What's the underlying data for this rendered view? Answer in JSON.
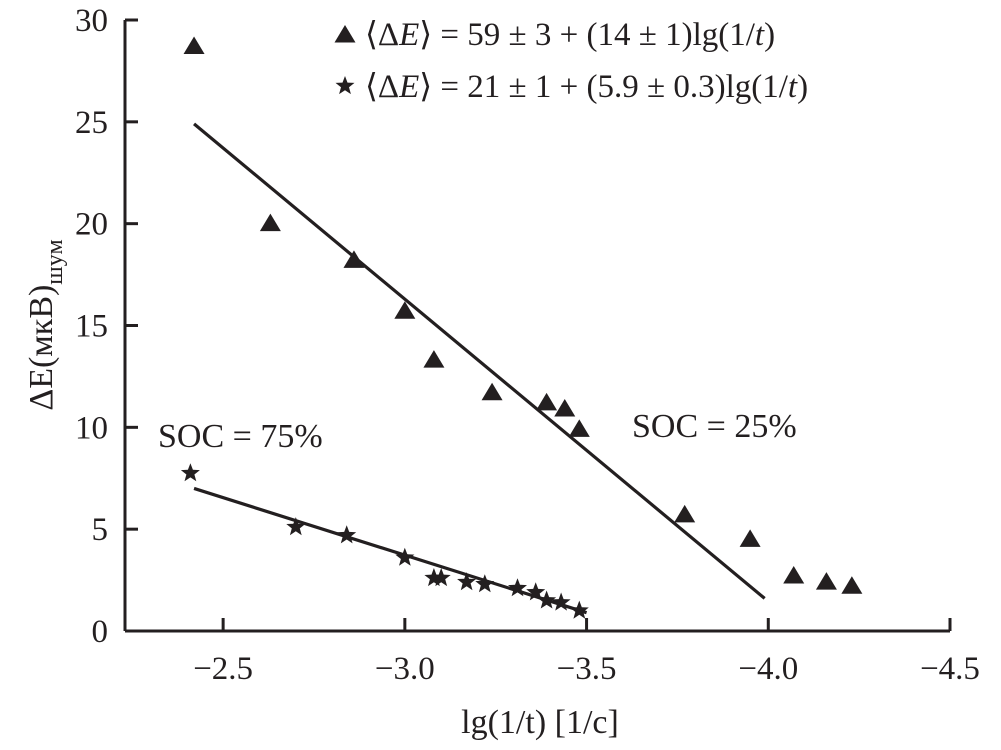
{
  "chart_data": {
    "type": "scatter",
    "title": "",
    "xlabel": "lg(1/t) [1/c]",
    "ylabel": "ΔE(мкВ)шум",
    "ylabel_main": "ΔE(мкВ)",
    "ylabel_sub": "шум",
    "xlim": [
      -2.23,
      -4.5
    ],
    "ylim": [
      0,
      30
    ],
    "xticks": [
      -2.5,
      -3.0,
      -3.5,
      -4.0,
      -4.5
    ],
    "xtick_labels": [
      "−2.5",
      "−3.0",
      "−3.5",
      "−4.0",
      "−4.5"
    ],
    "yticks": [
      0,
      5,
      10,
      15,
      20,
      25,
      30
    ],
    "ytick_labels": [
      "0",
      "5",
      "10",
      "15",
      "20",
      "25",
      "30"
    ],
    "grid": false,
    "legend_position": "top-right",
    "series": [
      {
        "name": "SOC = 25%",
        "marker": "triangle",
        "legend": "⟨ΔE⟩ = 59 ± 3 + (14 ± 1)lg(1/t)",
        "annotation": "SOC = 25%",
        "x": [
          -2.42,
          -2.63,
          -2.86,
          -3.0,
          -3.08,
          -3.24,
          -3.39,
          -3.44,
          -3.48,
          -3.77,
          -3.95,
          -4.07,
          -4.16,
          -4.23
        ],
        "y": [
          28.7,
          20.0,
          18.2,
          15.7,
          13.3,
          11.7,
          11.2,
          10.9,
          9.9,
          5.7,
          4.5,
          2.7,
          2.4,
          2.2
        ],
        "fit_line": {
          "x": [
            -2.42,
            -3.99
          ],
          "y": [
            24.9,
            1.6
          ]
        }
      },
      {
        "name": "SOC = 75%",
        "marker": "star",
        "legend": "⟨ΔE⟩ = 21 ± 1 + (5.9 ± 0.3)lg(1/t)",
        "annotation": "SOC = 75%",
        "x": [
          -2.41,
          -2.7,
          -2.84,
          -3.0,
          -3.08,
          -3.1,
          -3.17,
          -3.22,
          -3.31,
          -3.36,
          -3.39,
          -3.43,
          -3.48
        ],
        "y": [
          7.75,
          5.1,
          4.7,
          3.6,
          2.6,
          2.6,
          2.4,
          2.3,
          2.1,
          1.9,
          1.5,
          1.4,
          1.0
        ],
        "fit_line": {
          "x": [
            -2.42,
            -3.5
          ],
          "y": [
            7.0,
            0.9
          ]
        }
      }
    ]
  }
}
